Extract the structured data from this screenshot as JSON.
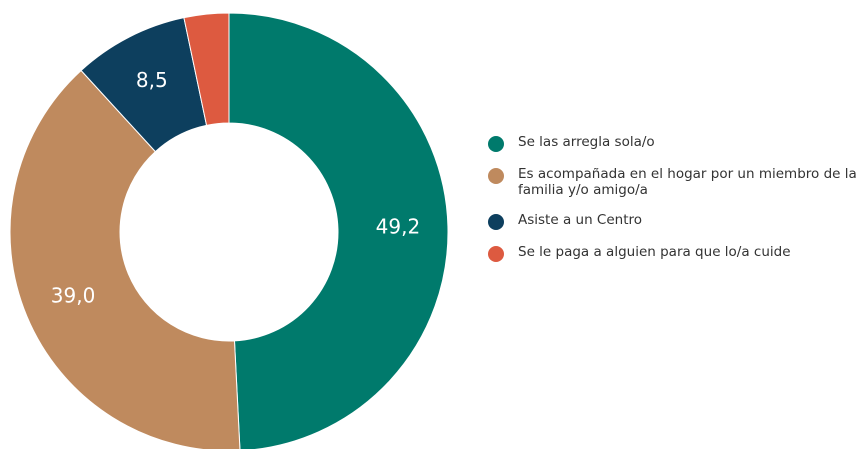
{
  "chart_data": {
    "type": "donut",
    "categories": [
      "Se las arregla sola/o",
      "Es acompañada en el hogar por un miembro de la familia y/o amigo/a",
      "Asiste a un Centro",
      "Se le paga a alguien para que lo/a cuide"
    ],
    "values": [
      49.2,
      39.0,
      8.5,
      3.3
    ],
    "value_labels": [
      "49,2",
      "39,0",
      "8,5",
      null
    ],
    "colors": [
      "#007a6c",
      "#bf8a5e",
      "#0d3f5e",
      "#dd5a40"
    ],
    "legend": "right"
  }
}
